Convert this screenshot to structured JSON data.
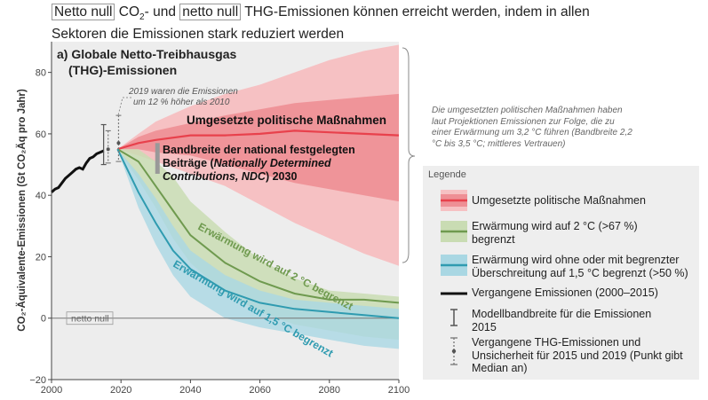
{
  "headline": {
    "parts": [
      "Netto null",
      " CO",
      "2",
      "- und ",
      "netto null",
      " THG-Emissionen können erreicht werden, indem in allen",
      "Sektoren die Emissionen stark reduziert werden"
    ]
  },
  "colors": {
    "policy": "#e8414c",
    "policy_band_outer": "#f6c1c3",
    "policy_band_inner": "#ee8f95",
    "two_deg": "#6f9a4f",
    "two_deg_band": "#c9dcb3",
    "one_five": "#2f9bb0",
    "one_five_band": "#a9d7e3",
    "history": "#111111",
    "background": "#ffffff",
    "legend_bg": "#eeeeee"
  },
  "chart_data": {
    "type": "line",
    "title": "a) Globale Netto-Treibhausgas (THG)-Emissionen",
    "title_lines": [
      "a) Globale Netto-Treibhausgas",
      "(THG)-Emissionen"
    ],
    "ylabel": "CO₂-Äquivalente-Emissionen (Gt CO₂Äq pro Jahr)",
    "xlabel": "",
    "xlim": [
      2000,
      2100
    ],
    "ylim": [
      -20,
      90
    ],
    "xticks": [
      2000,
      2020,
      2040,
      2060,
      2080,
      2100
    ],
    "yticks": [
      -20,
      0,
      20,
      40,
      60,
      80
    ],
    "xtick_labels": [
      "2000",
      "2020",
      "2040",
      "2060",
      "2080",
      "2100"
    ],
    "ytick_labels": [
      "−20",
      "0",
      "20",
      "40",
      "60",
      "80"
    ],
    "grid": false,
    "legend_placement": "right",
    "series": [
      {
        "name": "Vergangene Emissionen (2000–2015)",
        "x": [
          2000,
          2001,
          2002,
          2003,
          2004,
          2005,
          2006,
          2007,
          2008,
          2009,
          2010,
          2011,
          2012,
          2013,
          2014,
          2015
        ],
        "y": [
          41,
          42,
          42.5,
          44,
          45.5,
          46.5,
          47.5,
          48.5,
          49,
          48.5,
          50.5,
          52,
          52.5,
          53.5,
          54,
          54.5
        ]
      },
      {
        "name": "Umgesetzte politische Maßnahmen",
        "x": [
          2019,
          2025,
          2030,
          2040,
          2050,
          2060,
          2070,
          2080,
          2090,
          2100
        ],
        "y": [
          55,
          57,
          58,
          59.5,
          59.5,
          60,
          61,
          60.5,
          60,
          59.5
        ],
        "band_outer_low": [
          55,
          53,
          51,
          47,
          43,
          37,
          31,
          26,
          21,
          17
        ],
        "band_outer_high": [
          55,
          60,
          64,
          69,
          73,
          76,
          80,
          84,
          87,
          89
        ],
        "band_inner_low": [
          55,
          55,
          54,
          53,
          50,
          47,
          44,
          42,
          40,
          38
        ],
        "band_inner_high": [
          55,
          59,
          61,
          63.5,
          66,
          68,
          70,
          71,
          72,
          73
        ]
      },
      {
        "name": "Erwärmung wird auf 2 °C (>67 %) begrenzt",
        "x": [
          2019,
          2025,
          2030,
          2035,
          2040,
          2050,
          2060,
          2070,
          2080,
          2090,
          2100
        ],
        "y": [
          55,
          51,
          43,
          35,
          27,
          18,
          12,
          8,
          6,
          6,
          5
        ],
        "band_low": [
          55,
          45,
          36,
          26,
          18,
          8,
          2,
          -2,
          -4,
          -6,
          -7
        ],
        "band_high": [
          55,
          55,
          51,
          46,
          38,
          28,
          19,
          13,
          9,
          8,
          7
        ]
      },
      {
        "name": "Erwärmung wird ohne oder mit begrenzter Überschreitung auf 1,5 °C begrenzt (>50 %)",
        "x": [
          2019,
          2025,
          2030,
          2035,
          2040,
          2050,
          2060,
          2070,
          2080,
          2090,
          2100
        ],
        "y": [
          55,
          41,
          31,
          22,
          16,
          9,
          5,
          3,
          2,
          1,
          0
        ],
        "band_low": [
          55,
          36,
          24,
          14,
          7,
          0,
          -3,
          -5,
          -7,
          -9,
          -10
        ],
        "band_high": [
          55,
          47,
          39,
          30,
          22,
          14,
          9,
          6,
          5,
          4,
          3
        ]
      }
    ],
    "ranges": {
      "model_range_2015": {
        "x": 2015,
        "low": 50,
        "high": 63
      },
      "uncertainty_2015": {
        "x": 2016.3,
        "low": 50.5,
        "high": 61,
        "median": 55
      },
      "uncertainty_2019": {
        "x": 2019.3,
        "low": 51,
        "high": 66,
        "median": 57
      },
      "ndc_2030": {
        "x": 2030.5,
        "low": 47,
        "high": 57
      }
    },
    "annotations": {
      "emissions_2019_note": "2019 waren die Emissionen um 12 % höher als 2010",
      "policy_label": "Umgesetzte politische Maßnahmen",
      "ndc_label_lines": [
        "Bandbreite der national festgelegten",
        "Beiträge (",
        "Nationally Determined",
        "Contributions, NDC",
        ") 2030"
      ],
      "two_deg_label": "Erwärmung wird auf 2 °C begrenzt",
      "one_five_label": "Erwärmung wird auf 1,5 °C begrenzt",
      "net_zero_label": "netto null",
      "right_note": "Die umgesetzten politischen Maßnahmen haben laut Projektionen Emissionen zur Folge, die zu einer Erwärmung um 3,2 °C führen (Bandbreite 2,2 °C bis 3,5 °C; mittleres Vertrauen)"
    },
    "legend": {
      "title": "Legende",
      "items": [
        {
          "label": "Umgesetzte politische Maßnahmen",
          "symbol": "policy"
        },
        {
          "label": "Erwärmung wird auf 2 °C (>67 %) begrenzt",
          "symbol": "two_deg"
        },
        {
          "label": "Erwärmung wird ohne oder mit begrenzter Überschreitung auf 1,5 °C begrenzt (>50 %)",
          "symbol": "one_five"
        },
        {
          "label": "Vergangene Emissionen (2000–2015)",
          "symbol": "history"
        },
        {
          "label": "Modellbandbreite für die Emissionen 2015",
          "symbol": "model_range"
        },
        {
          "label": "Vergangene THG-Emissionen und Unsicherheit für 2015 und 2019 (Punkt gibt Median an)",
          "symbol": "uncertainty"
        }
      ]
    }
  }
}
